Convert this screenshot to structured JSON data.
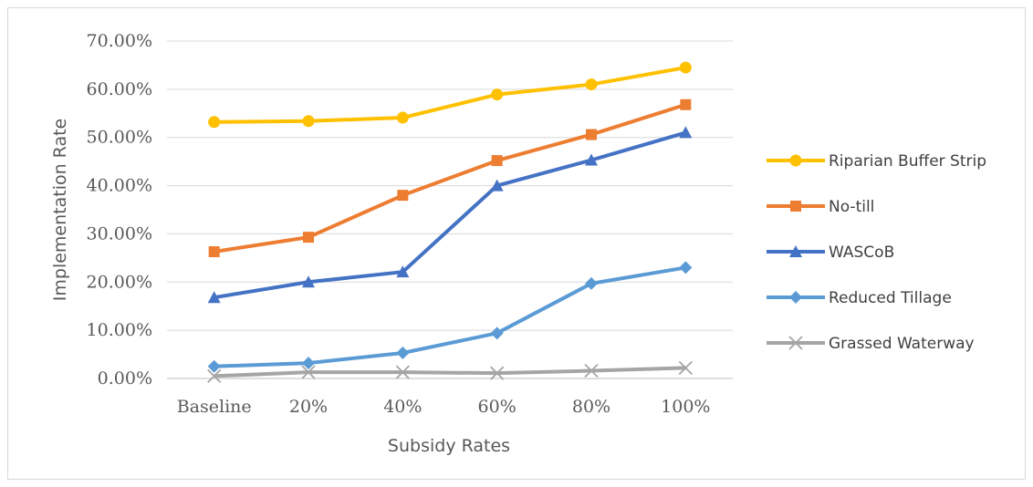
{
  "chart_data": {
    "type": "line",
    "title": "",
    "xlabel": "Subsidy Rates",
    "ylabel": "Implementation Rate",
    "categories": [
      "Baseline",
      "20%",
      "40%",
      "60%",
      "80%",
      "100%"
    ],
    "ylim": [
      0,
      0.7
    ],
    "yticks": [
      "0.00%",
      "10.00%",
      "20.00%",
      "30.00%",
      "40.00%",
      "50.00%",
      "60.00%",
      "70.00%"
    ],
    "grid": true,
    "legend_position": "right",
    "series": [
      {
        "name": "Riparian Buffer Strip",
        "color": "#FFC000",
        "marker": "circle",
        "values": [
          0.532,
          0.534,
          0.541,
          0.589,
          0.61,
          0.645
        ]
      },
      {
        "name": "No-till",
        "color": "#ED7D31",
        "marker": "square",
        "values": [
          0.263,
          0.293,
          0.38,
          0.452,
          0.506,
          0.568
        ]
      },
      {
        "name": "WASCoB",
        "color": "#4472C4",
        "marker": "triangle",
        "values": [
          0.168,
          0.2,
          0.221,
          0.4,
          0.453,
          0.51
        ]
      },
      {
        "name": "Reduced Tillage",
        "color": "#5B9BD5",
        "marker": "diamond",
        "values": [
          0.025,
          0.032,
          0.053,
          0.094,
          0.197,
          0.23
        ]
      },
      {
        "name": "Grassed Waterway",
        "color": "#A5A5A5",
        "marker": "x",
        "values": [
          0.005,
          0.013,
          0.013,
          0.011,
          0.016,
          0.022
        ]
      }
    ]
  }
}
